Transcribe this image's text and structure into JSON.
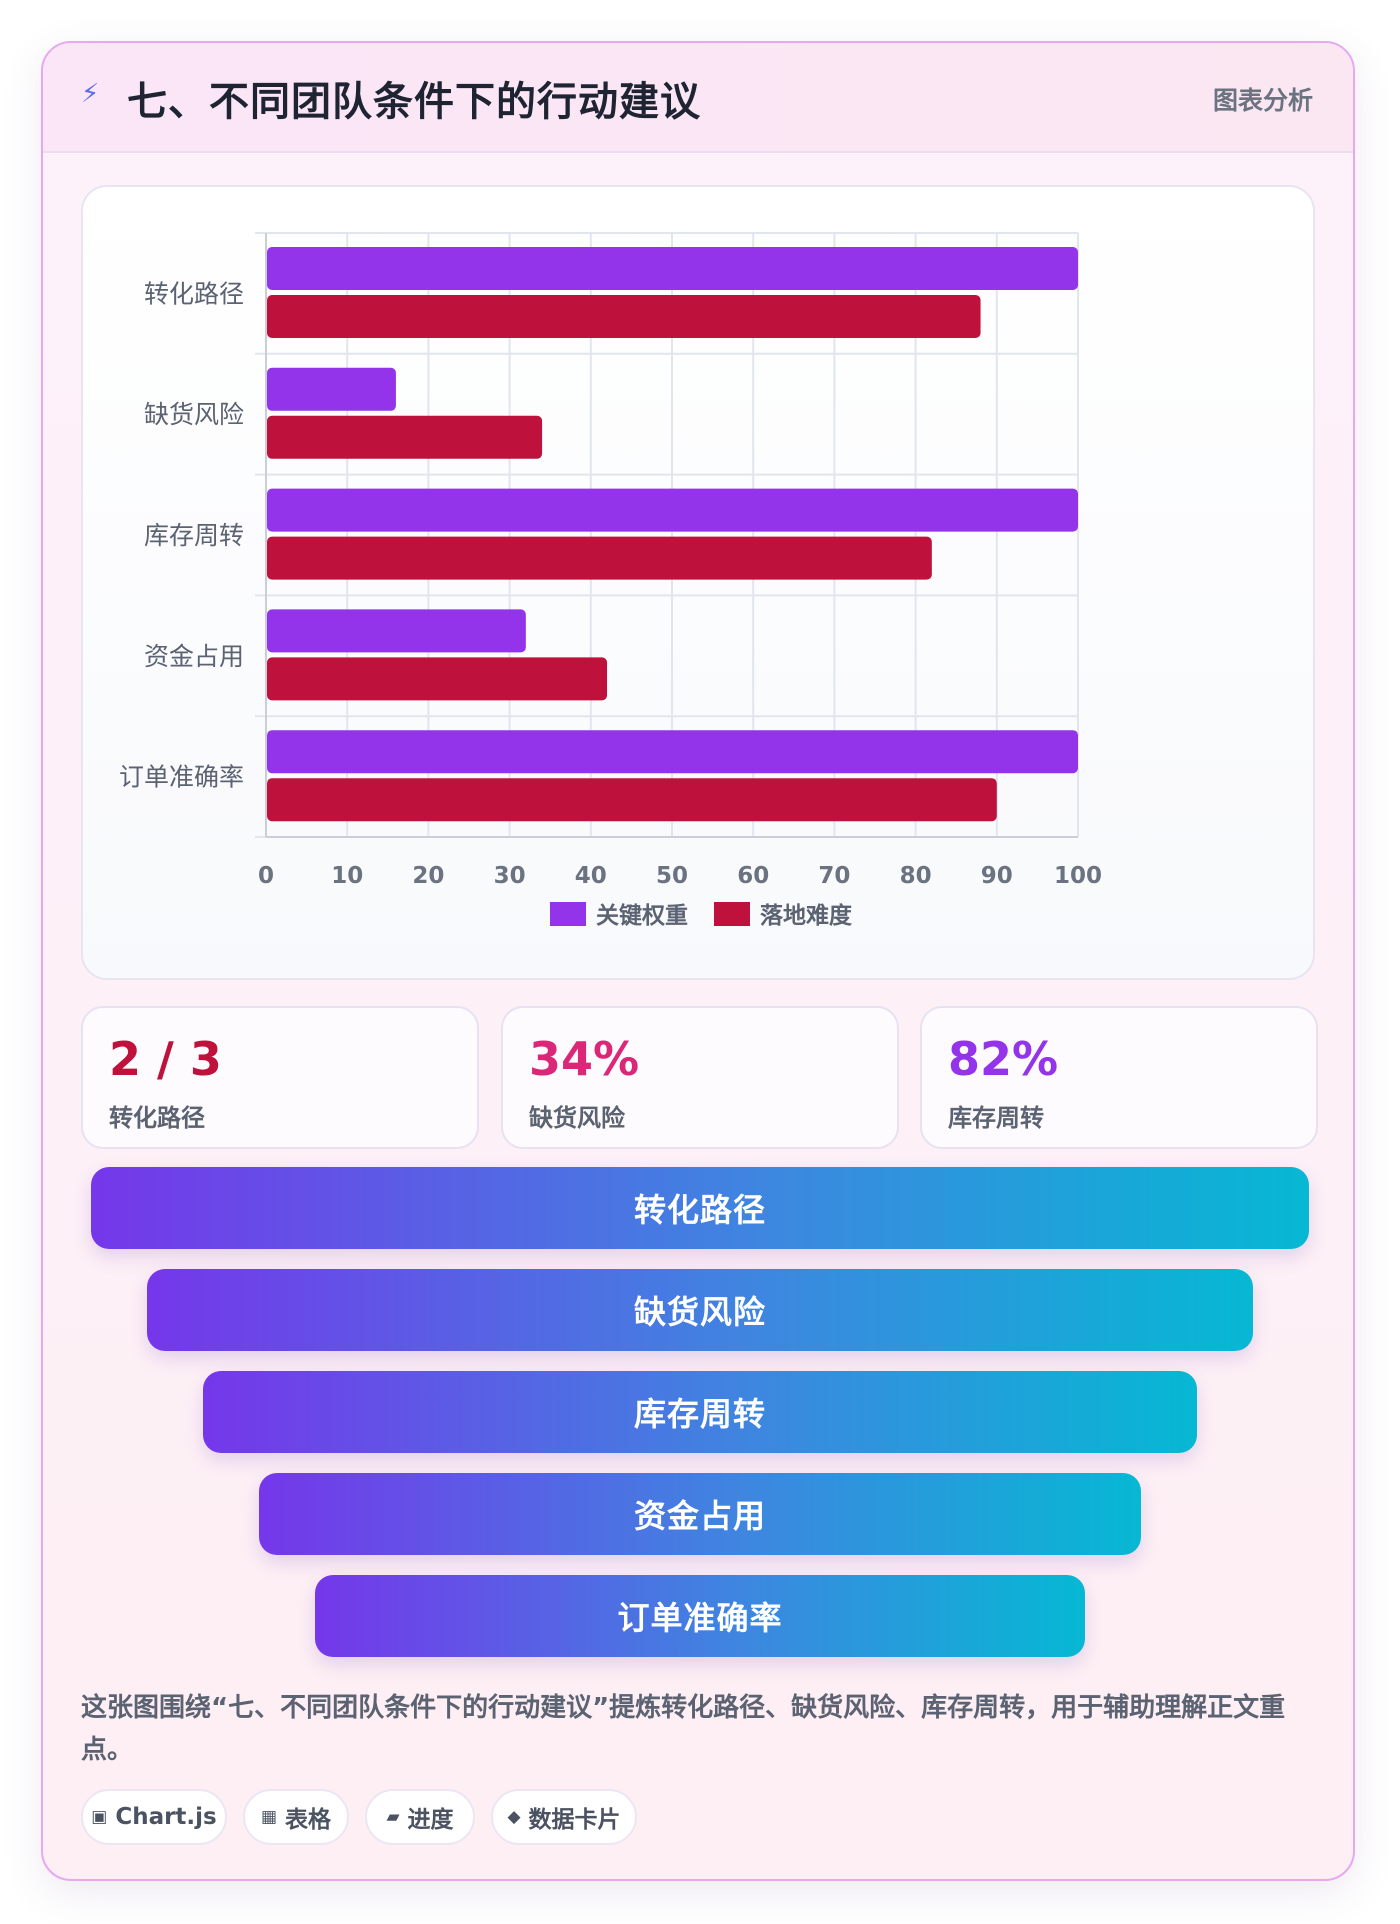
{
  "header": {
    "icon": "lightning-icon",
    "title": "七、不同团队条件下的行动建议",
    "tag": "图表分析"
  },
  "chart_data": {
    "type": "bar",
    "orientation": "horizontal",
    "categories": [
      "转化路径",
      "缺货风险",
      "库存周转",
      "资金占用",
      "订单准确率"
    ],
    "series": [
      {
        "name": "关键权重",
        "color": "#9333ea",
        "values": [
          100,
          16,
          100,
          32,
          100
        ]
      },
      {
        "name": "落地难度",
        "color": "#be123c",
        "values": [
          88,
          34,
          82,
          42,
          90
        ]
      }
    ],
    "xlim": [
      0,
      100
    ],
    "xticks": [
      0,
      10,
      20,
      30,
      40,
      50,
      60,
      70,
      80,
      90,
      100
    ],
    "grid": true,
    "legend": "bottom"
  },
  "kpis": [
    {
      "value": "2 / 3",
      "label": "转化路径",
      "color": "#be123c"
    },
    {
      "value": "34%",
      "label": "缺货风险",
      "color": "#db2777"
    },
    {
      "value": "82%",
      "label": "库存周转",
      "color": "#9333ea"
    }
  ],
  "funnel": [
    "转化路径",
    "缺货风险",
    "库存周转",
    "资金占用",
    "订单准确率"
  ],
  "caption": "这张图围绕“七、不同团队条件下的行动建议”提炼转化路径、缺货风险、库存周转，用于辅助理解正文重点。",
  "chips": [
    {
      "icon": "▣",
      "label": "Chart.js"
    },
    {
      "icon": "▦",
      "label": "表格"
    },
    {
      "icon": "▰",
      "label": "进度"
    },
    {
      "icon": "◆",
      "label": "数据卡片"
    }
  ]
}
